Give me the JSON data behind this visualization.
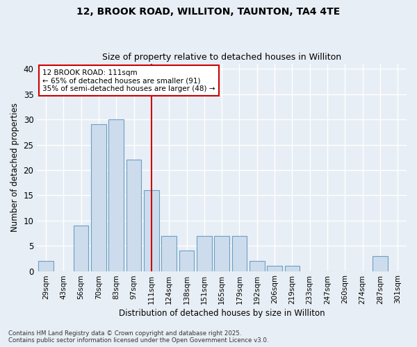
{
  "title_line1": "12, BROOK ROAD, WILLITON, TAUNTON, TA4 4TE",
  "title_line2": "Size of property relative to detached houses in Williton",
  "xlabel": "Distribution of detached houses by size in Williton",
  "ylabel": "Number of detached properties",
  "categories": [
    "29sqm",
    "43sqm",
    "56sqm",
    "70sqm",
    "83sqm",
    "97sqm",
    "111sqm",
    "124sqm",
    "138sqm",
    "151sqm",
    "165sqm",
    "179sqm",
    "192sqm",
    "206sqm",
    "219sqm",
    "233sqm",
    "247sqm",
    "260sqm",
    "274sqm",
    "287sqm",
    "301sqm"
  ],
  "values": [
    2,
    0,
    9,
    29,
    30,
    22,
    16,
    7,
    4,
    7,
    7,
    7,
    2,
    1,
    1,
    0,
    0,
    0,
    0,
    3,
    0
  ],
  "bar_color": "#cddcec",
  "bar_edge_color": "#6b9fc5",
  "highlight_index": 6,
  "highlight_line_color": "#cc0000",
  "annotation_text_line1": "12 BROOK ROAD: 111sqm",
  "annotation_text_line2": "← 65% of detached houses are smaller (91)",
  "annotation_text_line3": "35% of semi-detached houses are larger (48) →",
  "annotation_box_color": "#ffffff",
  "annotation_box_edge_color": "#cc0000",
  "ylim": [
    0,
    41
  ],
  "yticks": [
    0,
    5,
    10,
    15,
    20,
    25,
    30,
    35,
    40
  ],
  "background_color": "#e8eef5",
  "grid_color": "#ffffff",
  "footer_line1": "Contains HM Land Registry data © Crown copyright and database right 2025.",
  "footer_line2": "Contains public sector information licensed under the Open Government Licence v3.0."
}
